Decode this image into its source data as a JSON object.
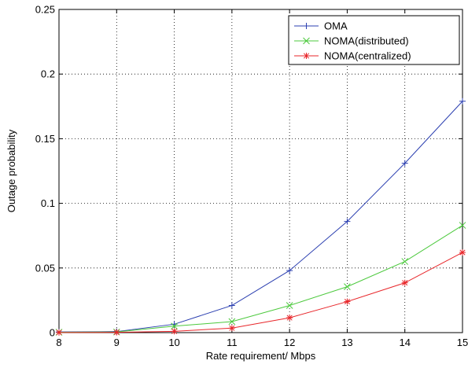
{
  "chart_data": {
    "type": "line",
    "xlabel": "Rate requirement/ Mbps",
    "ylabel": "Outage probability",
    "xlim": [
      8,
      15
    ],
    "ylim": [
      0,
      0.25
    ],
    "xticks": [
      8,
      9,
      10,
      11,
      12,
      13,
      14,
      15
    ],
    "yticks": [
      0,
      0.05,
      0.1,
      0.15,
      0.2,
      0.25
    ],
    "xtick_labels": [
      "8",
      "9",
      "10",
      "11",
      "12",
      "13",
      "14",
      "15"
    ],
    "ytick_labels": [
      "0",
      "0.05",
      "0.1",
      "0.15",
      "0.2",
      "0.25"
    ],
    "grid": true,
    "legend_position": "top-right",
    "x": [
      8,
      9,
      10,
      11,
      12,
      13,
      14,
      15
    ],
    "series": [
      {
        "name": "OMA",
        "color": "#2b3fb0",
        "marker": "plus",
        "values": [
          0.0005,
          0.0008,
          0.0065,
          0.021,
          0.048,
          0.086,
          0.131,
          0.179
        ]
      },
      {
        "name": "NOMA(distributed)",
        "color": "#4cc93d",
        "marker": "x",
        "values": [
          0.0003,
          0.0005,
          0.005,
          0.0085,
          0.021,
          0.0355,
          0.055,
          0.083
        ]
      },
      {
        "name": "NOMA(centralized)",
        "color": "#e8262a",
        "marker": "asterisk",
        "values": [
          0.0001,
          0.0002,
          0.001,
          0.0035,
          0.0115,
          0.024,
          0.0385,
          0.062
        ]
      }
    ]
  }
}
